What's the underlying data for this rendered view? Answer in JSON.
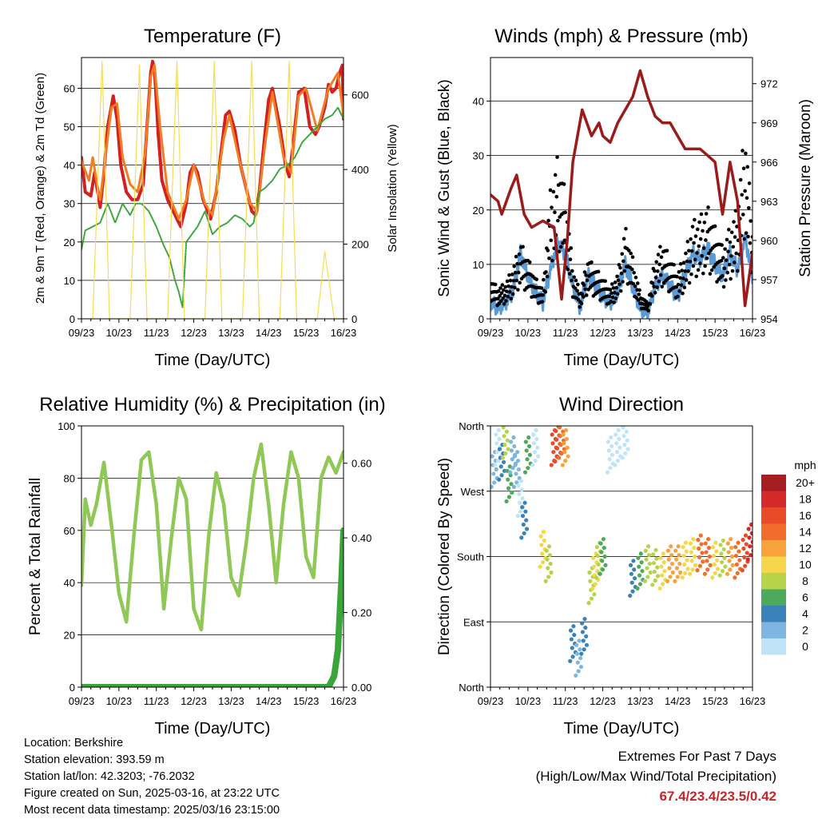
{
  "colors": {
    "t2m": "#d42020",
    "t9m": "#f07d22",
    "td": "#3aa63a",
    "solar": "#f6dd55",
    "wind": "#5b9bd5",
    "gust": "#000000",
    "pressure": "#9b1b1b",
    "rh": "#8fc856",
    "precip": "#3aa63a",
    "extremes": "#c8242a"
  },
  "x_ticks": [
    "09/23",
    "10/23",
    "11/23",
    "12/23",
    "13/23",
    "14/23",
    "15/23",
    "16/23"
  ],
  "chart_data": [
    {
      "id": "temperature",
      "type": "line",
      "title": "Temperature (F)",
      "xlabel": "Time (Day/UTC)",
      "ylabel": "2m & 9m T (Red, Orange) & 2m Td (Green)",
      "ylabel_right": "Solar Insolation (Yellow)",
      "ylim": [
        0,
        68
      ],
      "yticks": [
        0,
        10,
        20,
        30,
        40,
        50,
        60
      ],
      "ylim_right": [
        0,
        700
      ],
      "yticks_right": [
        0,
        200,
        400,
        600
      ],
      "xlim": [
        0,
        7
      ],
      "series": [
        {
          "name": "2m T",
          "x": [
            0,
            0.1,
            0.25,
            0.35,
            0.5,
            0.6,
            0.7,
            0.85,
            0.95,
            1.05,
            1.2,
            1.35,
            1.5,
            1.65,
            1.75,
            1.85,
            1.9,
            1.95,
            2.05,
            2.15,
            2.3,
            2.45,
            2.65,
            2.8,
            2.9,
            3.0,
            3.1,
            3.25,
            3.45,
            3.6,
            3.75,
            3.85,
            3.95,
            4.1,
            4.25,
            4.45,
            4.55,
            4.65,
            4.75,
            4.9,
            5.0,
            5.1,
            5.3,
            5.45,
            5.55,
            5.65,
            5.8,
            5.95,
            6.1,
            6.25,
            6.35,
            6.5,
            6.6,
            6.7,
            6.8,
            6.9,
            6.97,
            7.0
          ],
          "y": [
            42,
            33,
            32,
            38,
            29,
            38,
            50,
            58,
            52,
            40,
            33,
            31,
            31,
            35,
            50,
            64,
            67,
            65,
            48,
            36,
            31,
            28,
            24,
            30,
            38,
            40,
            38,
            31,
            26,
            33,
            45,
            53,
            54,
            49,
            40,
            32,
            28,
            27,
            33,
            48,
            57,
            60,
            50,
            40,
            37,
            45,
            59,
            60,
            50,
            48,
            50,
            55,
            61,
            59,
            60,
            64,
            66,
            52
          ]
        },
        {
          "name": "9m T",
          "x": [
            0,
            0.2,
            0.3,
            0.4,
            0.5,
            0.8,
            0.95,
            1.1,
            1.3,
            1.5,
            1.7,
            1.85,
            1.95,
            2.1,
            2.3,
            2.6,
            2.8,
            3.0,
            3.3,
            3.5,
            3.8,
            3.95,
            4.2,
            4.5,
            4.7,
            4.9,
            5.1,
            5.4,
            5.6,
            5.8,
            6.0,
            6.3,
            6.6,
            6.85,
            7.0
          ],
          "y": [
            41,
            36,
            42,
            36,
            31,
            55,
            56,
            42,
            35,
            33,
            43,
            63,
            66,
            50,
            33,
            26,
            31,
            40,
            30,
            27,
            47,
            53,
            42,
            30,
            28,
            45,
            59,
            42,
            38,
            58,
            60,
            49,
            60,
            64,
            53
          ]
        },
        {
          "name": "2m Td",
          "x": [
            0,
            0.1,
            0.3,
            0.5,
            0.7,
            0.9,
            1.1,
            1.3,
            1.45,
            1.6,
            1.8,
            2.0,
            2.2,
            2.35,
            2.5,
            2.6,
            2.7,
            2.8,
            2.95,
            3.1,
            3.3,
            3.5,
            3.7,
            3.9,
            4.1,
            4.3,
            4.5,
            4.6,
            4.75,
            4.9,
            5.1,
            5.3,
            5.5,
            5.7,
            5.9,
            6.1,
            6.3,
            6.5,
            6.7,
            6.85,
            7.0
          ],
          "y": [
            18,
            23,
            24,
            25,
            30,
            25,
            30,
            27,
            30,
            30,
            28,
            24,
            19,
            16,
            10,
            7,
            3,
            20,
            22,
            24,
            28,
            22,
            24,
            25,
            27,
            26,
            24,
            25,
            33,
            34,
            36,
            39,
            40,
            42,
            46,
            48,
            50,
            52,
            53,
            55,
            52
          ]
        },
        {
          "name": "Solar",
          "axis": "right",
          "x": [
            0,
            0.3,
            0.55,
            0.75,
            1.3,
            1.55,
            1.75,
            2.3,
            2.55,
            2.75,
            3.3,
            3.55,
            3.75,
            4.3,
            4.55,
            4.75,
            5.3,
            5.55,
            5.75,
            6.3,
            6.5,
            6.75,
            7.0
          ],
          "y": [
            0,
            0,
            690,
            0,
            0,
            680,
            0,
            0,
            690,
            0,
            0,
            690,
            0,
            0,
            690,
            0,
            0,
            690,
            0,
            0,
            180,
            0,
            0
          ]
        }
      ]
    },
    {
      "id": "winds",
      "type": "line",
      "title": "Winds (mph) & Pressure (mb)",
      "xlabel": "Time (Day/UTC)",
      "ylabel": "Sonic Wind & Gust (Blue, Black)",
      "ylabel_right": "Station Pressure (Maroon)",
      "ylim": [
        0,
        48
      ],
      "yticks": [
        0,
        10,
        20,
        30,
        40
      ],
      "ylim_right": [
        954,
        974
      ],
      "yticks_right": [
        954,
        957,
        960,
        963,
        966,
        969,
        972
      ],
      "xlim": [
        0,
        7
      ],
      "series": [
        {
          "name": "Sonic Wind",
          "x": [
            0,
            0.2,
            0.4,
            0.6,
            0.8,
            1.0,
            1.2,
            1.4,
            1.6,
            1.8,
            2.0,
            2.2,
            2.4,
            2.6,
            2.8,
            3.0,
            3.2,
            3.4,
            3.6,
            3.8,
            4.0,
            4.2,
            4.4,
            4.6,
            4.8,
            5.0,
            5.2,
            5.4,
            5.6,
            5.8,
            6.0,
            6.2,
            6.4,
            6.6,
            6.8,
            7.0
          ],
          "y": [
            3,
            2,
            3,
            5,
            12,
            8,
            5,
            3,
            9,
            14,
            12,
            6,
            2,
            8,
            6,
            4,
            3,
            5,
            10,
            6,
            2,
            1,
            6,
            8,
            6,
            4,
            8,
            12,
            11,
            13,
            10,
            8,
            12,
            9,
            15,
            8
          ]
        },
        {
          "name": "Gust",
          "x": [
            0,
            0.2,
            0.4,
            0.6,
            0.8,
            1.0,
            1.2,
            1.4,
            1.6,
            1.8,
            2.0,
            2.2,
            2.4,
            2.6,
            2.8,
            3.0,
            3.2,
            3.4,
            3.6,
            3.8,
            4.0,
            4.2,
            4.4,
            4.6,
            4.8,
            5.0,
            5.2,
            5.4,
            5.6,
            5.8,
            6.0,
            6.2,
            6.4,
            6.6,
            6.8,
            7.0
          ],
          "y": [
            8,
            6,
            7,
            10,
            15,
            12,
            8,
            6,
            25,
            32,
            25,
            10,
            5,
            12,
            10,
            8,
            6,
            9,
            18,
            12,
            5,
            3,
            12,
            15,
            12,
            9,
            13,
            19,
            20,
            22,
            18,
            14,
            18,
            22,
            38,
            18
          ]
        },
        {
          "name": "Pressure",
          "axis": "right",
          "x": [
            0,
            0.2,
            0.3,
            0.55,
            0.7,
            0.9,
            1.1,
            1.4,
            1.7,
            1.9,
            2.05,
            2.2,
            2.45,
            2.7,
            2.9,
            3.0,
            3.2,
            3.4,
            3.6,
            3.8,
            4.0,
            4.2,
            4.4,
            4.6,
            4.8,
            5.0,
            5.2,
            5.4,
            5.6,
            5.8,
            6.0,
            6.2,
            6.4,
            6.6,
            6.8,
            7.0
          ],
          "y": [
            963.5,
            963,
            962,
            964,
            965,
            962,
            961,
            961.5,
            961,
            955.5,
            960,
            966,
            970,
            968,
            969,
            968,
            967.5,
            969,
            970,
            971,
            973,
            971,
            969.5,
            969,
            969,
            968,
            967,
            967,
            967,
            966.5,
            966,
            962,
            966,
            963,
            955,
            959
          ]
        }
      ]
    },
    {
      "id": "humidity",
      "type": "line",
      "title": "Relative Humidity (%) & Precipitation (in)",
      "xlabel": "Time (Day/UTC)",
      "ylabel": "Percent & Total Rainfall",
      "ylim": [
        0,
        100
      ],
      "yticks": [
        0,
        20,
        40,
        60,
        80,
        100
      ],
      "ylim_right": [
        0,
        0.7
      ],
      "yticks_right": [
        "0.00",
        "0.20",
        "0.40",
        "0.60"
      ],
      "xlim": [
        0,
        7
      ],
      "series": [
        {
          "name": "RH",
          "x": [
            0,
            0.1,
            0.25,
            0.4,
            0.6,
            0.8,
            1.0,
            1.2,
            1.4,
            1.6,
            1.8,
            2.0,
            2.2,
            2.4,
            2.6,
            2.8,
            3.0,
            3.2,
            3.4,
            3.6,
            3.8,
            4.0,
            4.2,
            4.4,
            4.6,
            4.8,
            5.0,
            5.2,
            5.4,
            5.6,
            5.8,
            6.0,
            6.2,
            6.4,
            6.6,
            6.8,
            7.0
          ],
          "y": [
            39,
            72,
            62,
            70,
            86,
            62,
            36,
            25,
            58,
            87,
            90,
            70,
            30,
            57,
            80,
            72,
            30,
            22,
            58,
            82,
            70,
            42,
            35,
            55,
            80,
            93,
            70,
            40,
            70,
            90,
            80,
            50,
            42,
            80,
            88,
            82,
            90
          ]
        },
        {
          "name": "Precipitation",
          "axis": "right",
          "x": [
            0,
            1,
            2,
            3,
            4,
            5,
            6,
            6.6,
            6.75,
            6.85,
            6.95,
            7.0
          ],
          "y": [
            0,
            0,
            0,
            0,
            0,
            0,
            0,
            0,
            0.03,
            0.1,
            0.3,
            0.42
          ]
        }
      ]
    },
    {
      "id": "direction",
      "type": "scatter",
      "title": "Wind Direction",
      "xlabel": "Time (Day/UTC)",
      "ylabel": "Direction (Colored By Speed)",
      "ylim": [
        0,
        360
      ],
      "ytick_labels": [
        "North",
        "East",
        "South",
        "West",
        "North"
      ],
      "yticks": [
        0,
        90,
        180,
        270,
        360
      ],
      "xlim": [
        0,
        7
      ],
      "series": [
        {
          "name": "Direction",
          "x": [
            0.1,
            0.2,
            0.3,
            0.4,
            0.5,
            0.6,
            0.7,
            0.8,
            0.9,
            1.0,
            1.2,
            1.4,
            1.55,
            1.7,
            1.8,
            1.9,
            2.0,
            2.2,
            2.35,
            2.5,
            2.7,
            2.8,
            2.9,
            3.0,
            3.2,
            3.4,
            3.6,
            3.8,
            4.0,
            4.2,
            4.4,
            4.6,
            4.8,
            5.0,
            5.2,
            5.4,
            5.6,
            5.8,
            6.0,
            6.2,
            6.4,
            6.6,
            6.8,
            6.95
          ],
          "y": [
            300,
            330,
            310,
            340,
            280,
            320,
            300,
            260,
            230,
            320,
            330,
            190,
            170,
            330,
            335,
            340,
            330,
            60,
            40,
            70,
            140,
            160,
            175,
            180,
            320,
            330,
            340,
            150,
            160,
            170,
            165,
            160,
            170,
            170,
            175,
            180,
            185,
            180,
            175,
            178,
            180,
            175,
            185,
            200
          ],
          "speed": [
            3,
            2,
            6,
            9,
            7,
            4,
            3,
            2,
            5,
            7,
            2,
            11,
            10,
            17,
            18,
            16,
            14,
            6,
            4,
            5,
            9,
            11,
            10,
            7,
            2,
            1,
            2,
            5,
            8,
            9,
            10,
            12,
            14,
            13,
            11,
            12,
            15,
            16,
            12,
            10,
            14,
            15,
            18,
            20
          ]
        }
      ],
      "colorbar": {
        "title": "mph",
        "labels": [
          "20+",
          "18",
          "16",
          "14",
          "12",
          "10",
          "8",
          "6",
          "4",
          "2",
          "0"
        ],
        "colors": [
          "#a51f22",
          "#d42a2a",
          "#e94b28",
          "#f26c2c",
          "#f8a23c",
          "#f6d64a",
          "#b5d44a",
          "#4daa5c",
          "#3b82b9",
          "#7db6e0",
          "#bfe4f7"
        ]
      }
    }
  ],
  "info": {
    "location": "Location: Berkshire",
    "elevation": "Station elevation: 393.59 m",
    "latlon": "Station lat/lon: 42.3203; -76.2032",
    "created": "Figure created on Sun, 2025-03-16, at 23:22 UTC",
    "timestamp": "Most recent data timestamp: 2025/03/16 23:15:00"
  },
  "extremes": {
    "line1": "Extremes For Past 7 Days",
    "line2": "(High/Low/Max Wind/Total Precipitation)",
    "values": "67.4/23.4/23.5/0.42"
  }
}
